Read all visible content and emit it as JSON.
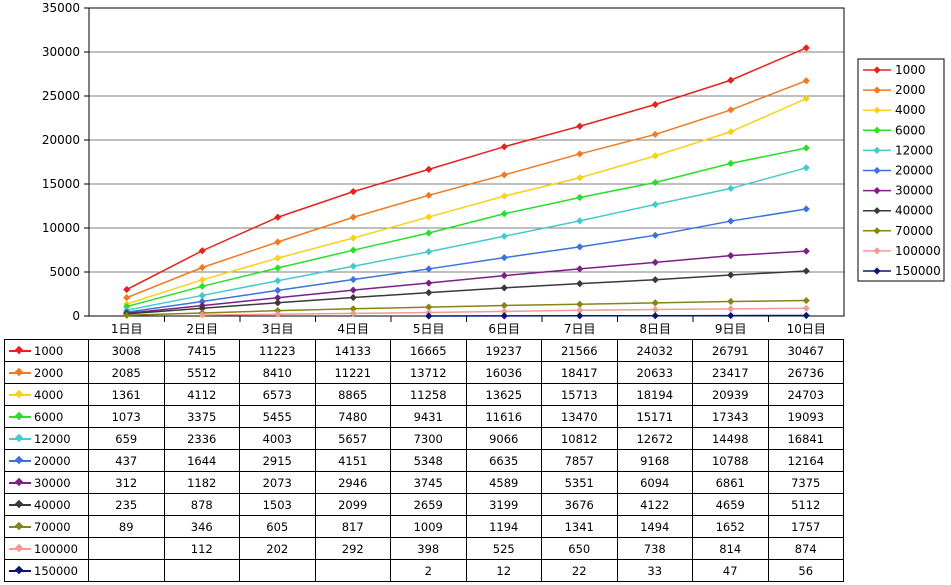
{
  "chart_data": {
    "type": "line",
    "title": "",
    "xlabel": "",
    "ylabel": "",
    "ylim": [
      0,
      35000
    ],
    "ytick_step": 5000,
    "yticks": [
      "0",
      "5000",
      "10000",
      "15000",
      "20000",
      "25000",
      "30000",
      "35000"
    ],
    "grid": true,
    "legend_position": "right",
    "categories": [
      "1日目",
      "2日目",
      "3日目",
      "4日目",
      "5日目",
      "6日目",
      "7日目",
      "8日目",
      "9日目",
      "10日目"
    ],
    "series": [
      {
        "name": "1000",
        "color": "#E8211E",
        "values": [
          3008,
          7415,
          11223,
          14133,
          16665,
          19237,
          21566,
          24032,
          26791,
          30467
        ]
      },
      {
        "name": "2000",
        "color": "#F07A23",
        "values": [
          2085,
          5512,
          8410,
          11221,
          13712,
          16036,
          18417,
          20633,
          23417,
          26736
        ]
      },
      {
        "name": "4000",
        "color": "#F7D21A",
        "values": [
          1361,
          4112,
          6573,
          8865,
          11258,
          13625,
          15713,
          18194,
          20939,
          24703
        ]
      },
      {
        "name": "6000",
        "color": "#27E027",
        "values": [
          1073,
          3375,
          5455,
          7480,
          9431,
          11616,
          13470,
          15171,
          17343,
          19093
        ]
      },
      {
        "name": "12000",
        "color": "#45C9CC",
        "values": [
          659,
          2336,
          4003,
          5657,
          7300,
          9066,
          10812,
          12672,
          14498,
          16841
        ]
      },
      {
        "name": "20000",
        "color": "#3D72DB",
        "values": [
          437,
          1644,
          2915,
          4151,
          5348,
          6635,
          7857,
          9168,
          10788,
          12164
        ]
      },
      {
        "name": "30000",
        "color": "#7E1F86",
        "values": [
          312,
          1182,
          2073,
          2946,
          3745,
          4589,
          5351,
          6094,
          6861,
          7375
        ]
      },
      {
        "name": "40000",
        "color": "#3A3A3A",
        "values": [
          235,
          878,
          1503,
          2099,
          2659,
          3199,
          3676,
          4122,
          4659,
          5112
        ]
      },
      {
        "name": "70000",
        "color": "#858516",
        "values": [
          89,
          346,
          605,
          817,
          1009,
          1194,
          1341,
          1494,
          1652,
          1757
        ]
      },
      {
        "name": "100000",
        "color": "#F29A96",
        "values": [
          null,
          112,
          202,
          292,
          398,
          525,
          650,
          738,
          814,
          874
        ]
      },
      {
        "name": "150000",
        "color": "#0A1378",
        "values": [
          null,
          null,
          null,
          null,
          2,
          12,
          22,
          33,
          47,
          56
        ]
      }
    ]
  }
}
